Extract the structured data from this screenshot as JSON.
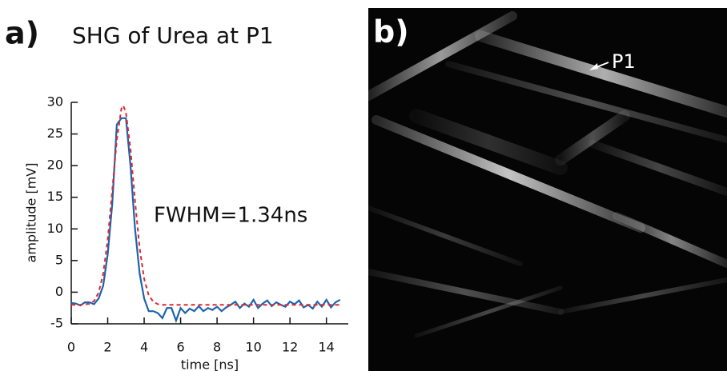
{
  "chart_data": {
    "type": "line",
    "title": "SHG of Urea at P1",
    "xlabel": "time [ns]",
    "ylabel": "amplitude [mV]",
    "annotation": "FWHM=1.34ns",
    "xlim": [
      0,
      15.2
    ],
    "ylim": [
      -5,
      30
    ],
    "xticks": [
      0,
      2,
      4,
      6,
      8,
      10,
      12,
      14
    ],
    "yticks": [
      -5,
      0,
      5,
      10,
      15,
      20,
      25,
      30
    ],
    "series": [
      {
        "color": "#1f63ad",
        "dashed": false,
        "x": [
          0,
          0.25,
          0.5,
          0.75,
          1,
          1.25,
          1.5,
          1.75,
          2,
          2.25,
          2.5,
          2.75,
          3,
          3.25,
          3.5,
          3.75,
          4,
          4.25,
          4.5,
          4.75,
          5,
          5.25,
          5.5,
          5.75,
          6,
          6.25,
          6.5,
          6.75,
          7,
          7.25,
          7.5,
          7.75,
          8,
          8.25,
          8.5,
          8.75,
          9,
          9.25,
          9.5,
          9.75,
          10,
          10.25,
          10.5,
          10.75,
          11,
          11.25,
          11.5,
          11.75,
          12,
          12.25,
          12.5,
          12.75,
          13,
          13.25,
          13.5,
          13.75,
          14,
          14.25,
          14.5,
          14.75
        ],
        "values": [
          -1.7,
          -1.8,
          -2.1,
          -1.6,
          -1.6,
          -1.9,
          -1.0,
          1,
          6,
          14,
          26.5,
          27.5,
          27.5,
          20,
          10,
          3,
          -1,
          -3,
          -3,
          -3.3,
          -4.1,
          -2.5,
          -2.5,
          -4.5,
          -2.5,
          -3.3,
          -2.6,
          -3,
          -2.2,
          -3,
          -2.5,
          -2.8,
          -2.3,
          -3,
          -2.4,
          -2,
          -1.5,
          -2.5,
          -1.8,
          -2.3,
          -1.2,
          -2.5,
          -1.8,
          -1.3,
          -2.2,
          -1.6,
          -2,
          -2.3,
          -1.5,
          -1.9,
          -1.3,
          -2.4,
          -2,
          -2.6,
          -1.5,
          -2.3,
          -1.2,
          -2.4,
          -1.6,
          -1.2
        ]
      },
      {
        "color": "#e0282e",
        "dashed": true,
        "x": [
          0,
          0.5,
          1,
          1.25,
          1.5,
          1.75,
          2,
          2.25,
          2.5,
          2.75,
          2.85,
          3,
          3.25,
          3.5,
          3.75,
          4,
          4.25,
          4.5,
          4.75,
          5,
          6,
          8,
          10,
          12,
          14,
          14.75
        ],
        "values": [
          -2,
          -2,
          -1.84,
          -1.39,
          -0.1,
          2.86,
          8.3,
          16.1,
          24.1,
          29,
          29.5,
          28.4,
          22.6,
          14.4,
          7,
          2.1,
          -0.5,
          -1.5,
          -1.9,
          -2,
          -2,
          -2,
          -2,
          -2,
          -2,
          -2
        ]
      }
    ]
  },
  "panel_labels": [
    "a)",
    "b)"
  ],
  "image_annotation": "P1"
}
